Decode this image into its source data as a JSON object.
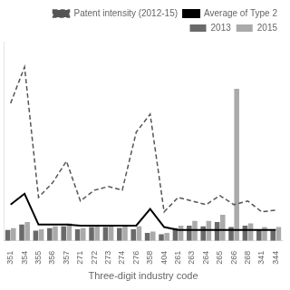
{
  "chart_data": {
    "type": "bar",
    "categories": [
      "351",
      "354",
      "355",
      "356",
      "357",
      "271",
      "272",
      "273",
      "274",
      "276",
      "358",
      "404",
      "261",
      "263",
      "264",
      "265",
      "266",
      "268",
      "341",
      "344"
    ],
    "series": [
      {
        "name": "2013",
        "type": "bar",
        "color": "#6a6a6a",
        "values": [
          0.3,
          0.45,
          0.28,
          0.35,
          0.4,
          0.32,
          0.38,
          0.38,
          0.36,
          0.32,
          0.22,
          0.18,
          0.35,
          0.42,
          0.4,
          0.52,
          0.38,
          0.42,
          0.32,
          0.28
        ]
      },
      {
        "name": "2015",
        "type": "bar",
        "color": "#aaaaaa",
        "values": [
          0.35,
          0.52,
          0.32,
          0.4,
          0.48,
          0.36,
          0.44,
          0.44,
          0.4,
          0.4,
          0.26,
          0.22,
          0.42,
          0.55,
          0.55,
          0.72,
          4.2,
          0.48,
          0.38,
          0.38
        ]
      },
      {
        "name": "Patent intensity (2012-15)",
        "type": "line",
        "color": "#555555",
        "line_style": "dashed",
        "values": [
          3.8,
          4.8,
          1.2,
          1.6,
          2.2,
          1.1,
          1.4,
          1.5,
          1.4,
          3.0,
          3.5,
          0.8,
          1.2,
          1.1,
          1.0,
          1.25,
          1.0,
          1.1,
          0.8,
          0.85
        ]
      },
      {
        "name": "Average of Type 2",
        "type": "line",
        "color": "#000000",
        "line_style": "solid",
        "values": [
          1.0,
          1.3,
          0.45,
          0.45,
          0.45,
          0.42,
          0.42,
          0.42,
          0.42,
          0.42,
          0.88,
          0.38,
          0.3,
          0.3,
          0.3,
          0.3,
          0.3,
          0.3,
          0.3,
          0.3
        ]
      }
    ],
    "xlabel": "Three-digit industry code",
    "ylim": [
      0,
      5.5
    ],
    "tick_labels": "x",
    "grid": false,
    "legend": "upper right"
  }
}
